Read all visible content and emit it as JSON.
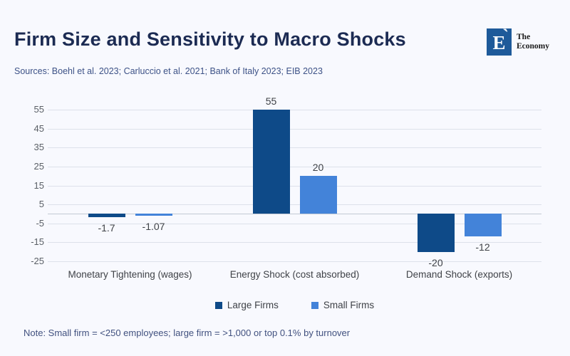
{
  "header": {
    "title": "Firm Size and Sensitivity to Macro Shocks",
    "sources": "Sources: Boehl et al. 2023; Carluccio et al. 2021; Bank of Italy 2023; EIB 2023"
  },
  "logo": {
    "monogram": "E",
    "tick": "ˋ",
    "line1": "The",
    "line2": "Economy"
  },
  "footer": {
    "note": "Note: Small firm = <250 employees; large firm = >1,000 or top 0.1% by turnover"
  },
  "colors": {
    "background": "#f8f9fe",
    "title": "#1c2b53",
    "large_firms": "#0e4a88",
    "small_firms": "#4383d9",
    "gridline": "#dde1ea",
    "zero_line": "#c3c9d4",
    "logo_blue": "#1e5a9a"
  },
  "chart_data": {
    "type": "bar",
    "categories": [
      "Monetary Tightening (wages)",
      "Energy Shock (cost absorbed)",
      "Demand Shock (exports)"
    ],
    "series": [
      {
        "name": "Large Firms",
        "color": "#0e4a88",
        "values": [
          -1.7,
          55,
          -20
        ],
        "labels": [
          "-1.7",
          "55",
          "-20"
        ]
      },
      {
        "name": "Small Firms",
        "color": "#4383d9",
        "values": [
          -1.07,
          20,
          -12
        ],
        "labels": [
          "-1.07",
          "20",
          "-12"
        ]
      }
    ],
    "ylim": [
      -25,
      55
    ],
    "yticks": [
      55,
      45,
      35,
      25,
      15,
      5,
      -5,
      -15,
      -25
    ],
    "grid": true,
    "zero_axis_line": true,
    "legend_position": "bottom",
    "xlabel": "",
    "ylabel": ""
  }
}
